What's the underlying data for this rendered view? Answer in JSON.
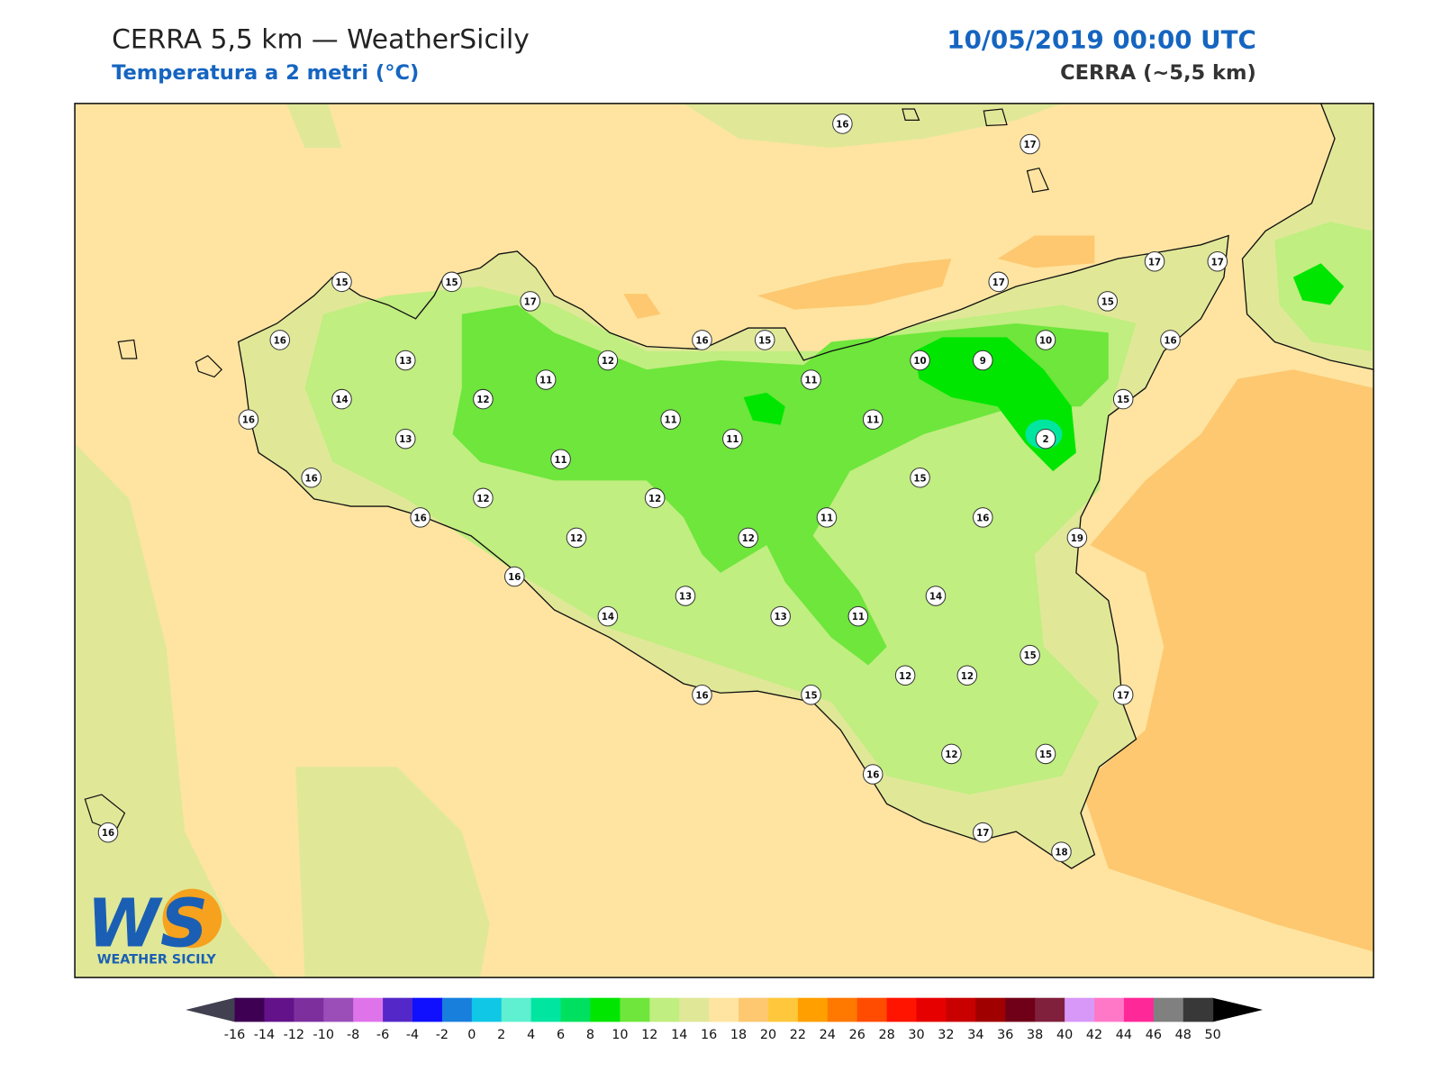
{
  "header": {
    "title": "CERRA 5,5 km — WeatherSicily",
    "subtitle": "Temperatura a 2 metri (°C)",
    "datetime": "10/05/2019 00:00 UTC",
    "source": "CERRA (~5,5 km)"
  },
  "logo": {
    "mark": "WS",
    "name": "WEATHER SICILY"
  },
  "stations": [
    16,
    17,
    15,
    15,
    17,
    17,
    17,
    17,
    15,
    16,
    13,
    12,
    16,
    15,
    11,
    11,
    10,
    9,
    10,
    16,
    14,
    12,
    16,
    15,
    13,
    11,
    11,
    11,
    2,
    11,
    16,
    15,
    12,
    12,
    16,
    11,
    16,
    12,
    12,
    19,
    16,
    14,
    13,
    14,
    13,
    11,
    15,
    12,
    12,
    16,
    15,
    17,
    12,
    15,
    16,
    16,
    17,
    18
  ],
  "colorbar": {
    "ticks": [
      -16,
      -14,
      -12,
      -10,
      -8,
      -6,
      -4,
      -2,
      0,
      2,
      4,
      6,
      8,
      10,
      12,
      14,
      16,
      18,
      20,
      22,
      24,
      26,
      28,
      30,
      32,
      34,
      36,
      38,
      40,
      42,
      44,
      46,
      48,
      50
    ],
    "colors": [
      "#3d0052",
      "#64128a",
      "#7d2f9e",
      "#9b4db8",
      "#df74ea",
      "#5428c8",
      "#1010ff",
      "#1880dc",
      "#10c8e6",
      "#5ef0d0",
      "#00e6a0",
      "#00e060",
      "#00e600",
      "#6ee63c",
      "#c0ee80",
      "#e0e898",
      "#fee4a0",
      "#fdc870",
      "#ffc83c",
      "#ffa000",
      "#ff7800",
      "#ff4c00",
      "#ff1400",
      "#e60000",
      "#c80000",
      "#a00000",
      "#700018",
      "#80203c",
      "#d898f8",
      "#ff78c8",
      "#ff2898",
      "#808080",
      "#383838"
    ],
    "under_color": "#404050",
    "over_color": "#000000"
  }
}
